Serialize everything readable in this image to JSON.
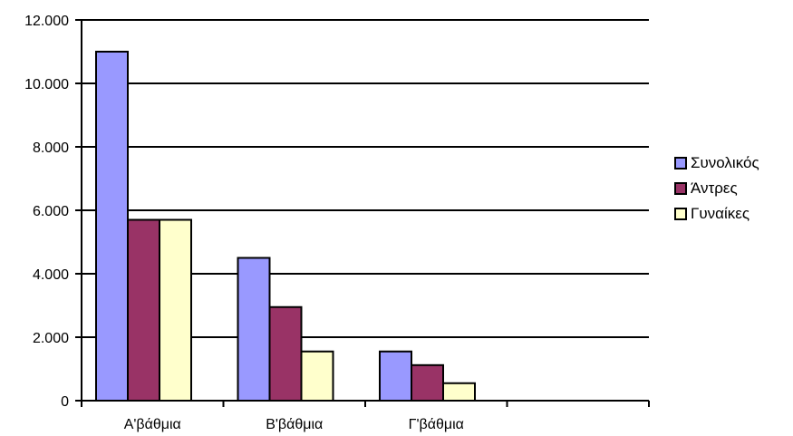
{
  "chart_data": {
    "type": "bar",
    "categories": [
      "Α'βάθμια",
      "Β'βάθμια",
      "Γ'βάθμια",
      ""
    ],
    "series": [
      {
        "name": "Συνολικός",
        "color": "#9999ff",
        "values": [
          11000,
          4500,
          1550,
          null
        ]
      },
      {
        "name": "Άντρες",
        "color": "#993366",
        "values": [
          5700,
          2950,
          1120,
          null
        ]
      },
      {
        "name": "Γυναίκες",
        "color": "#ffffcc",
        "values": [
          5700,
          1550,
          550,
          null
        ]
      }
    ],
    "yticks": [
      "0",
      "2.000",
      "4.000",
      "6.000",
      "8.000",
      "10.000",
      "12.000"
    ],
    "ylim": [
      0,
      12000
    ],
    "grid": true,
    "legend_position": "right",
    "title": "",
    "xlabel": "",
    "ylabel": ""
  }
}
